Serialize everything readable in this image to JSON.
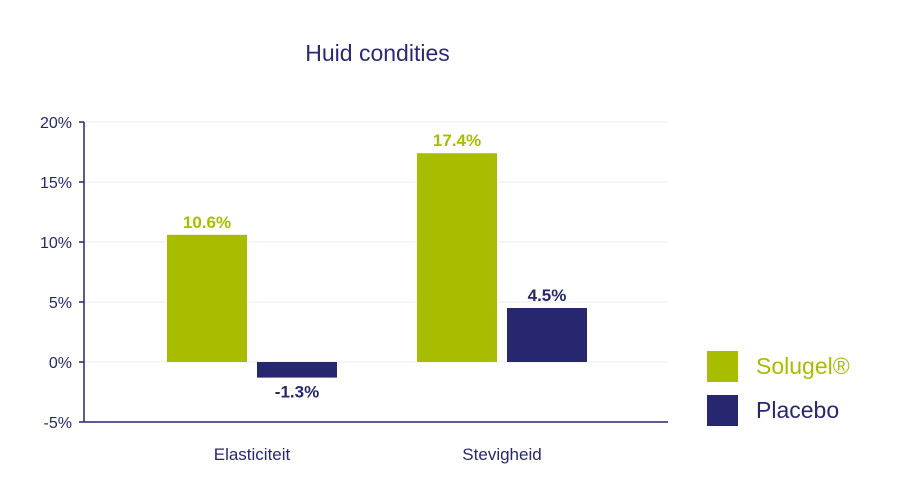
{
  "chart_data": {
    "type": "bar",
    "title": "Huid condities",
    "categories": [
      "Elasticiteit",
      "Stevigheid"
    ],
    "series": [
      {
        "name": "Solugel®",
        "values": [
          10.6,
          17.4
        ],
        "labels": [
          "10.6%",
          "17.4%"
        ],
        "color": "#a8bd00"
      },
      {
        "name": "Placebo",
        "values": [
          -1.3,
          4.5
        ],
        "labels": [
          "-1.3%",
          "4.5%"
        ],
        "color": "#27276f"
      }
    ],
    "yticks": [
      "-5%",
      "0%",
      "5%",
      "10%",
      "15%",
      "20%"
    ],
    "ylim": [
      -5,
      20
    ],
    "grid": true,
    "legend_position": "right"
  }
}
